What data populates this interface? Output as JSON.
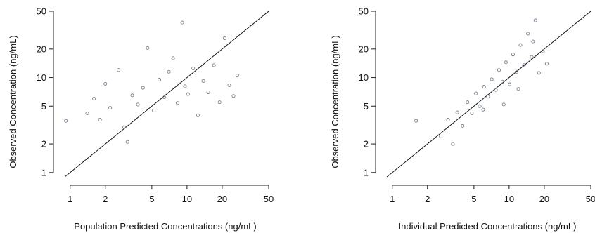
{
  "chart_data": [
    {
      "type": "scatter",
      "title": "",
      "xlabel": "Population Predicted Concentrations (ng/mL)",
      "ylabel": "Observed Concentration (ng/mL)",
      "x_scale": "log",
      "y_scale": "log",
      "xlim": [
        0.85,
        50
      ],
      "ylim": [
        0.9,
        50
      ],
      "x_ticks": [
        1,
        2,
        5,
        10,
        20,
        50
      ],
      "y_ticks": [
        1,
        2,
        5,
        10,
        20,
        50
      ],
      "x_tick_labels": [
        "1",
        "2",
        "5",
        "10",
        "20",
        "50"
      ],
      "y_tick_labels": [
        "1",
        "2",
        "5",
        "10",
        "20",
        "50"
      ],
      "reference_line": "identity (y = x)",
      "point_color": "#708090",
      "grid": false,
      "series": [
        {
          "points": [
            [
              0.92,
              3.5
            ],
            [
              1.4,
              4.2
            ],
            [
              1.6,
              6.0
            ],
            [
              1.8,
              3.6
            ],
            [
              2.0,
              8.6
            ],
            [
              2.2,
              4.8
            ],
            [
              2.6,
              12.0
            ],
            [
              2.9,
              3.0
            ],
            [
              3.1,
              2.1
            ],
            [
              3.4,
              6.5
            ],
            [
              3.8,
              5.2
            ],
            [
              4.2,
              7.8
            ],
            [
              4.6,
              20.5
            ],
            [
              5.2,
              4.5
            ],
            [
              5.8,
              9.5
            ],
            [
              6.4,
              6.2
            ],
            [
              7.0,
              11.5
            ],
            [
              7.6,
              16.0
            ],
            [
              8.3,
              5.4
            ],
            [
              9.1,
              38.0
            ],
            [
              9.6,
              8.1
            ],
            [
              10.2,
              6.7
            ],
            [
              11.3,
              12.5
            ],
            [
              12.4,
              4.0
            ],
            [
              13.8,
              9.2
            ],
            [
              15.2,
              7.0
            ],
            [
              17.0,
              13.5
            ],
            [
              19.0,
              5.5
            ],
            [
              21.0,
              26.0
            ],
            [
              23.0,
              8.3
            ],
            [
              25.0,
              6.4
            ],
            [
              27.0,
              10.5
            ]
          ]
        }
      ]
    },
    {
      "type": "scatter",
      "title": "",
      "xlabel": "Individual Predicted Concentrations (ng/mL)",
      "ylabel": "Observed Concentration (ng/mL)",
      "x_scale": "log",
      "y_scale": "log",
      "xlim": [
        0.85,
        50
      ],
      "ylim": [
        0.9,
        50
      ],
      "x_ticks": [
        1,
        2,
        5,
        10,
        20,
        50
      ],
      "y_ticks": [
        1,
        2,
        5,
        10,
        20,
        50
      ],
      "x_tick_labels": [
        "1",
        "2",
        "5",
        "10",
        "20",
        "50"
      ],
      "y_tick_labels": [
        "1",
        "2",
        "5",
        "10",
        "20",
        "50"
      ],
      "reference_line": "identity (y = x)",
      "point_color": "#708090",
      "grid": false,
      "series": [
        {
          "points": [
            [
              1.6,
              3.5
            ],
            [
              2.6,
              2.4
            ],
            [
              3.0,
              3.6
            ],
            [
              3.3,
              2.0
            ],
            [
              3.6,
              4.3
            ],
            [
              4.0,
              3.1
            ],
            [
              4.4,
              5.5
            ],
            [
              4.8,
              4.2
            ],
            [
              5.2,
              6.8
            ],
            [
              5.6,
              5.0
            ],
            [
              6.1,
              8.0
            ],
            [
              6.6,
              6.3
            ],
            [
              7.1,
              9.6
            ],
            [
              7.7,
              7.4
            ],
            [
              8.2,
              12.0
            ],
            [
              8.8,
              9.0
            ],
            [
              9.4,
              14.5
            ],
            [
              10.1,
              8.5
            ],
            [
              10.8,
              17.5
            ],
            [
              11.6,
              11.5
            ],
            [
              12.5,
              22.0
            ],
            [
              13.4,
              13.5
            ],
            [
              14.5,
              29.0
            ],
            [
              15.6,
              16.5
            ],
            [
              16.8,
              40.0
            ],
            [
              18.0,
              11.2
            ],
            [
              19.5,
              19.0
            ],
            [
              21.0,
              14.0
            ],
            [
              9.0,
              5.2
            ],
            [
              12.0,
              7.6
            ],
            [
              6.0,
              4.6
            ],
            [
              16.0,
              24.0
            ]
          ]
        }
      ]
    }
  ]
}
